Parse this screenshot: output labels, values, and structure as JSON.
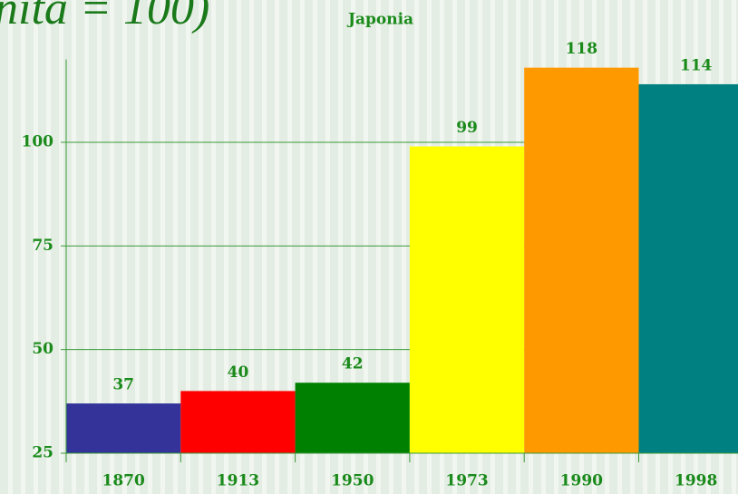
{
  "chart_data": {
    "type": "bar",
    "heading": "nita = 100)",
    "title": "Japonia",
    "categories": [
      "1870",
      "1913",
      "1950",
      "1973",
      "1990",
      "1998"
    ],
    "values": [
      37,
      40,
      42,
      99,
      118,
      114
    ],
    "colors": [
      "#333399",
      "#ff0000",
      "#008000",
      "#ffff00",
      "#ff9900",
      "#008080"
    ],
    "ylim": [
      25,
      120
    ],
    "yticks": [
      25,
      50,
      75,
      100
    ],
    "grid": true
  }
}
